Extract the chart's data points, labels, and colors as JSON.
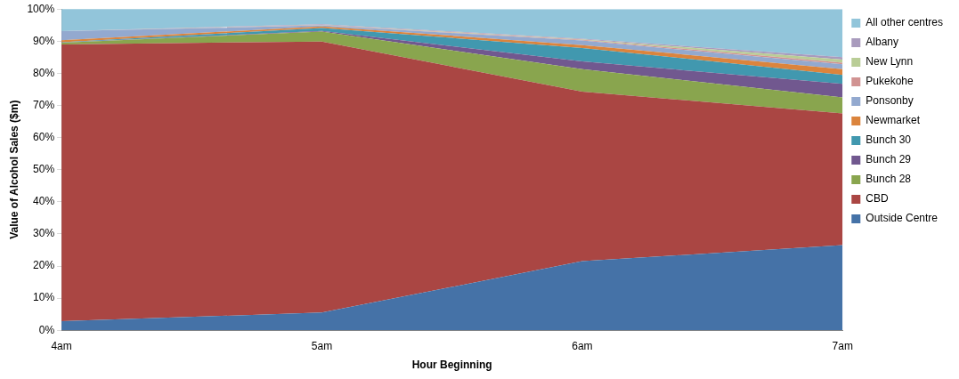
{
  "chart_data": {
    "type": "area",
    "stacked": true,
    "xlabel": "Hour Beginning",
    "ylabel": "Value of Alcohol Sales ($m)",
    "categories": [
      "4am",
      "5am",
      "6am",
      "7am"
    ],
    "ylim": [
      0,
      100
    ],
    "yticks": [
      {
        "value": 0,
        "label": "0%"
      },
      {
        "value": 10,
        "label": "10%"
      },
      {
        "value": 20,
        "label": "20%"
      },
      {
        "value": 30,
        "label": "30%"
      },
      {
        "value": 40,
        "label": "40%"
      },
      {
        "value": 50,
        "label": "50%"
      },
      {
        "value": 60,
        "label": "60%"
      },
      {
        "value": 70,
        "label": "70%"
      },
      {
        "value": 80,
        "label": "80%"
      },
      {
        "value": 90,
        "label": "90%"
      },
      {
        "value": 100,
        "label": "100%"
      }
    ],
    "legend": "right",
    "series": [
      {
        "name": "Outside Centre",
        "color": "#4572a7",
        "values": [
          2.8,
          5.5,
          21.5,
          26.5
        ]
      },
      {
        "name": "CBD",
        "color": "#aa4643",
        "values": [
          86.2,
          84.4,
          52.8,
          41
        ]
      },
      {
        "name": "Bunch 28",
        "color": "#89a54e",
        "values": [
          0.5,
          3.1,
          7.0,
          5
        ]
      },
      {
        "name": "Bunch 29",
        "color": "#71588f",
        "values": [
          0.1,
          0.2,
          2.4,
          4.2
        ]
      },
      {
        "name": "Bunch 30",
        "color": "#4198af",
        "values": [
          0.1,
          0.9,
          4.2,
          2.8
        ]
      },
      {
        "name": "Newmarket",
        "color": "#db843d",
        "values": [
          0.6,
          0.5,
          0.9,
          1.8
        ]
      },
      {
        "name": "Ponsonby",
        "color": "#93a9cf",
        "values": [
          2.8,
          0.3,
          1.4,
          1.5
        ]
      },
      {
        "name": "Pukekohe",
        "color": "#d19392",
        "values": [
          0,
          0.1,
          0.2,
          0.5
        ]
      },
      {
        "name": "New Lynn",
        "color": "#b9cd96",
        "values": [
          0,
          0.1,
          0.2,
          1.0
        ]
      },
      {
        "name": "Albany",
        "color": "#a99bbd",
        "values": [
          0,
          0.2,
          0.2,
          0.7
        ]
      },
      {
        "name": "All other centres",
        "color": "#92c5da",
        "values": [
          7.0,
          4.7,
          9.2,
          15
        ]
      }
    ]
  }
}
